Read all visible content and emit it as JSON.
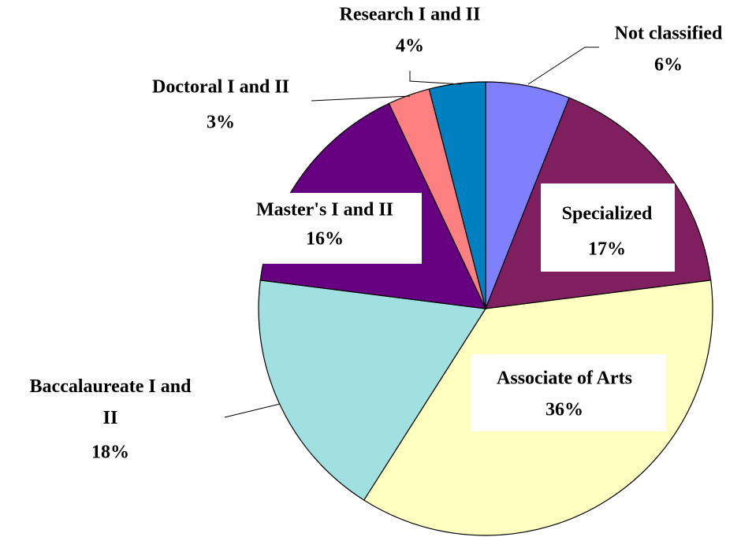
{
  "chart_data": {
    "type": "pie",
    "categories": [
      "Not classified",
      "Specialized",
      "Associate of Arts",
      "Baccalaureate I and II",
      "Master's I and II",
      "Doctoral I and II",
      "Research I and II"
    ],
    "values": [
      6,
      17,
      36,
      18,
      16,
      3,
      4
    ],
    "value_labels": [
      "6%",
      "17%",
      "36%",
      "18%",
      "16%",
      "3%",
      "4%"
    ],
    "colors": [
      "#8080ff",
      "#7f1f5f",
      "#ffffc0",
      "#a0e0e0",
      "#660080",
      "#ff8080",
      "#0080c0"
    ]
  }
}
